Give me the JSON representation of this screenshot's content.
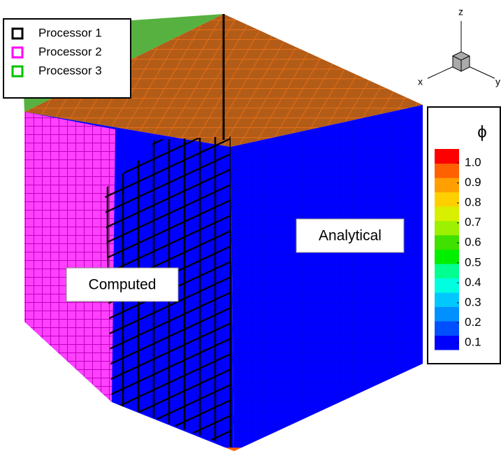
{
  "legend": {
    "items": [
      {
        "label": "Processor 1",
        "color": "#000000"
      },
      {
        "label": "Processor 2",
        "color": "#ff00ff"
      },
      {
        "label": "Processor 3",
        "color": "#00c000"
      }
    ]
  },
  "annotations": {
    "computed": "Computed",
    "analytical": "Analytical"
  },
  "axes": {
    "x": "x",
    "y": "y",
    "z": "z"
  },
  "colorbar": {
    "title": "ϕ",
    "ticks": [
      {
        "value": 1,
        "label": "1.0"
      },
      0.9,
      0.8,
      0.7,
      0.6,
      0.5,
      0.4,
      0.3,
      0.2,
      0.1
    ],
    "colors": [
      "#0000ff",
      "#0050ff",
      "#0090ff",
      "#00c8ff",
      "#00ffe0",
      "#00ff90",
      "#00f000",
      "#40e000",
      "#9cf000",
      "#d8f000",
      "#ffd000",
      "#ffa000",
      "#ff6000",
      "#ff0000"
    ]
  }
}
